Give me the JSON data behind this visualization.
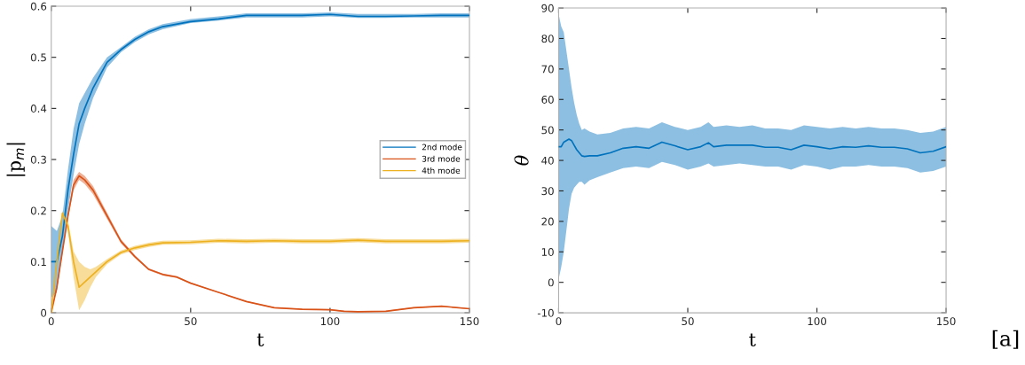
{
  "chart_data": [
    {
      "type": "line",
      "ylabel": "|p$_{m}$|",
      "xlabel": "t",
      "xlim": [
        0,
        150
      ],
      "xticks": [
        0,
        50,
        100,
        150
      ],
      "ylim": [
        0,
        0.6
      ],
      "yticks": [
        0,
        0.1,
        0.2,
        0.3,
        0.4,
        0.5,
        0.6
      ],
      "grid": false,
      "legend": "right",
      "series": [
        {
          "name": "2nd mode",
          "color": "#0072bd",
          "x": [
            0,
            2,
            4,
            6,
            8,
            10,
            12,
            15,
            20,
            25,
            30,
            35,
            40,
            50,
            60,
            70,
            80,
            90,
            100,
            110,
            120,
            130,
            140,
            150
          ],
          "values": [
            0.1,
            0.1,
            0.15,
            0.24,
            0.31,
            0.37,
            0.4,
            0.44,
            0.49,
            0.515,
            0.535,
            0.55,
            0.56,
            0.57,
            0.575,
            0.582,
            0.582,
            0.582,
            0.584,
            0.58,
            0.58,
            0.581,
            0.582,
            0.582
          ],
          "lower": [
            0.03,
            0.04,
            0.12,
            0.2,
            0.27,
            0.33,
            0.37,
            0.42,
            0.48,
            0.51,
            0.53,
            0.545,
            0.555,
            0.567,
            0.572,
            0.578,
            0.578,
            0.578,
            0.58,
            0.577,
            0.577,
            0.578,
            0.578,
            0.578
          ],
          "upper": [
            0.17,
            0.16,
            0.19,
            0.28,
            0.36,
            0.41,
            0.43,
            0.46,
            0.5,
            0.52,
            0.54,
            0.555,
            0.565,
            0.575,
            0.58,
            0.586,
            0.586,
            0.586,
            0.588,
            0.585,
            0.585,
            0.585,
            0.586,
            0.586
          ]
        },
        {
          "name": "3rd mode",
          "color": "#d95319",
          "x": [
            0,
            2,
            4,
            6,
            8,
            10,
            12,
            15,
            20,
            25,
            30,
            35,
            40,
            45,
            50,
            60,
            70,
            80,
            90,
            100,
            105,
            110,
            120,
            130,
            140,
            150
          ],
          "values": [
            0,
            0.05,
            0.12,
            0.19,
            0.25,
            0.268,
            0.26,
            0.24,
            0.19,
            0.14,
            0.11,
            0.085,
            0.075,
            0.07,
            0.058,
            0.04,
            0.022,
            0.01,
            0.007,
            0.006,
            0.003,
            0.002,
            0.003,
            0.01,
            0.013,
            0.008
          ],
          "lower": [
            0,
            0.045,
            0.115,
            0.185,
            0.24,
            0.26,
            0.252,
            0.232,
            0.184,
            0.136,
            0.107,
            0.083,
            0.073,
            0.068,
            0.057,
            0.039,
            0.021,
            0.009,
            0.006,
            0.005,
            0.002,
            0.001,
            0.002,
            0.009,
            0.012,
            0.007
          ],
          "upper": [
            0,
            0.055,
            0.125,
            0.195,
            0.26,
            0.276,
            0.268,
            0.248,
            0.196,
            0.144,
            0.113,
            0.087,
            0.077,
            0.072,
            0.059,
            0.041,
            0.023,
            0.011,
            0.008,
            0.007,
            0.004,
            0.003,
            0.004,
            0.011,
            0.014,
            0.009
          ]
        },
        {
          "name": "4th mode",
          "color": "#edb120",
          "x": [
            0,
            2,
            4,
            6,
            8,
            10,
            12,
            14,
            16,
            20,
            25,
            30,
            35,
            40,
            50,
            60,
            70,
            80,
            90,
            100,
            110,
            120,
            130,
            140,
            150
          ],
          "values": [
            0,
            0.1,
            0.195,
            0.17,
            0.1,
            0.05,
            0.06,
            0.07,
            0.08,
            0.1,
            0.118,
            0.127,
            0.133,
            0.137,
            0.138,
            0.141,
            0.14,
            0.141,
            0.14,
            0.14,
            0.142,
            0.14,
            0.14,
            0.14,
            0.141
          ],
          "lower": [
            0,
            0.09,
            0.19,
            0.16,
            0.07,
            0.005,
            0.025,
            0.05,
            0.07,
            0.095,
            0.114,
            0.123,
            0.129,
            0.133,
            0.134,
            0.137,
            0.136,
            0.137,
            0.136,
            0.136,
            0.138,
            0.136,
            0.136,
            0.136,
            0.137
          ],
          "upper": [
            0,
            0.11,
            0.2,
            0.18,
            0.12,
            0.1,
            0.09,
            0.085,
            0.09,
            0.105,
            0.122,
            0.131,
            0.137,
            0.141,
            0.142,
            0.145,
            0.144,
            0.145,
            0.144,
            0.144,
            0.146,
            0.144,
            0.144,
            0.144,
            0.145
          ]
        }
      ]
    },
    {
      "type": "line",
      "ylabel": "θ",
      "xlabel": "t",
      "xlim": [
        0,
        150
      ],
      "xticks": [
        0,
        50,
        100,
        150
      ],
      "ylim": [
        -10,
        90
      ],
      "yticks": [
        -10,
        0,
        10,
        20,
        30,
        40,
        50,
        60,
        70,
        80,
        90
      ],
      "grid": false,
      "annotations": [
        "[a]"
      ],
      "series": [
        {
          "color": "#0072bd",
          "x": [
            0,
            1,
            2,
            3,
            4,
            5,
            6,
            7,
            8,
            9,
            10,
            12,
            15,
            20,
            25,
            30,
            35,
            40,
            45,
            50,
            55,
            58,
            60,
            65,
            70,
            75,
            80,
            85,
            90,
            95,
            100,
            105,
            110,
            115,
            120,
            125,
            130,
            135,
            140,
            145,
            150
          ],
          "values": [
            44.5,
            44.5,
            46,
            46.5,
            47,
            46.5,
            45,
            43.5,
            42.5,
            41.5,
            41.3,
            41.5,
            41.5,
            42.5,
            44,
            44.5,
            44,
            46,
            44.8,
            43.5,
            44.5,
            45.8,
            44.5,
            45,
            45,
            45,
            44.3,
            44.3,
            43.5,
            45,
            44.5,
            43.8,
            44.5,
            44.3,
            44.8,
            44.3,
            44.3,
            43.8,
            42.5,
            43,
            44.5
          ],
          "lower": [
            1,
            5,
            10,
            17,
            24,
            29,
            31,
            32,
            33,
            33,
            32,
            33.5,
            34.5,
            36,
            37.5,
            38,
            37.5,
            39.5,
            38.5,
            37,
            38,
            39,
            38,
            38.5,
            39,
            38.5,
            38,
            38,
            37,
            38.5,
            38,
            37,
            38,
            38,
            38.5,
            38,
            38,
            37.5,
            36,
            36.5,
            38
          ],
          "upper": [
            88,
            84,
            82,
            76,
            70,
            64,
            59,
            55,
            52,
            50,
            50.5,
            49.5,
            48.5,
            49,
            50.5,
            51,
            50.5,
            52.5,
            51,
            50,
            51,
            52.5,
            51,
            51.5,
            51,
            51.5,
            50.5,
            50.5,
            50,
            51.5,
            51,
            50.5,
            51,
            50.5,
            51,
            50.5,
            50.5,
            50,
            49,
            49.5,
            51
          ]
        }
      ]
    }
  ]
}
